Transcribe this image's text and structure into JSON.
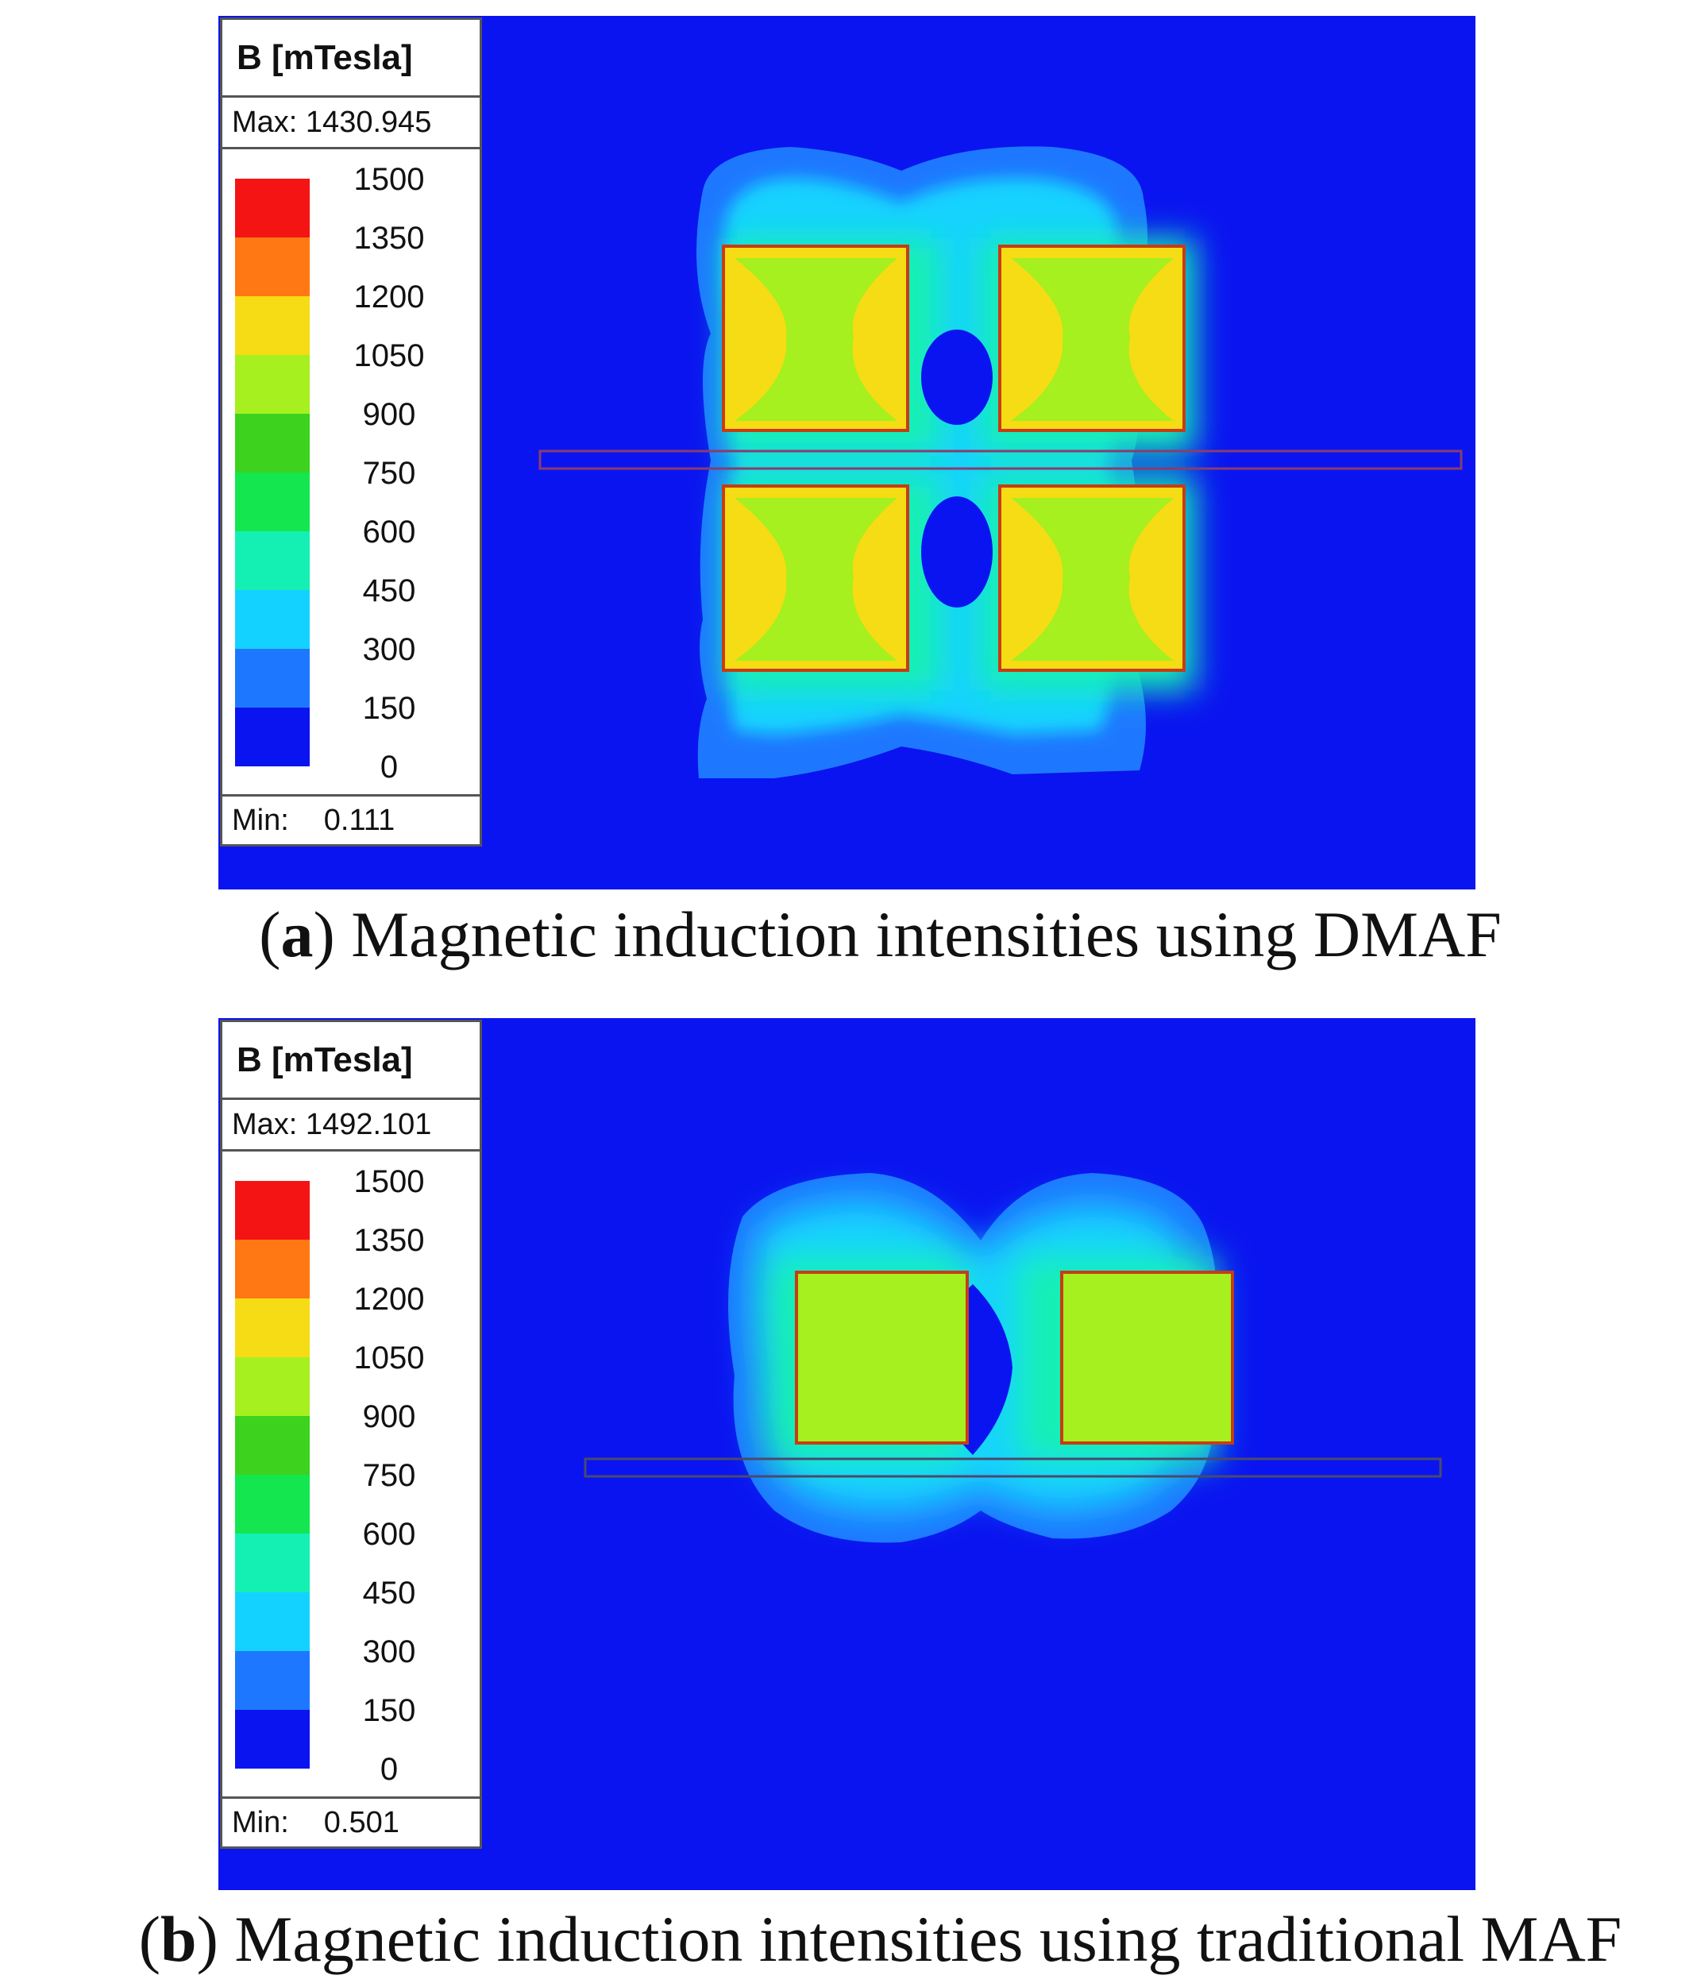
{
  "colors": {
    "background": "#0a14f0",
    "legend_bands": [
      "#0a14f0",
      "#1e78ff",
      "#14d2ff",
      "#14f0b4",
      "#14e650",
      "#3cd21e",
      "#a5f01e",
      "#f5dc14",
      "#ff7814",
      "#f51414"
    ]
  },
  "panel_a": {
    "legend": {
      "title": "B [mTesla]",
      "max_label": "Max:",
      "max_value": "1430.945",
      "min_label": "Min:",
      "min_value": "0.111",
      "ticks": [
        "1500",
        "1350",
        "1200",
        "1050",
        "900",
        "750",
        "600",
        "450",
        "300",
        "150",
        "0"
      ]
    },
    "caption_letter": "a",
    "caption_text": "Magnetic induction intensities using DMAF"
  },
  "panel_b": {
    "legend": {
      "title": "B [mTesla]",
      "max_label": "Max:",
      "max_value": "1492.101",
      "min_label": "Min:",
      "min_value": "0.501",
      "ticks": [
        "1500",
        "1350",
        "1200",
        "1050",
        "900",
        "750",
        "600",
        "450",
        "300",
        "150",
        "0"
      ]
    },
    "caption_letter": "b",
    "caption_text": "Magnetic induction intensities using traditional MAF"
  }
}
